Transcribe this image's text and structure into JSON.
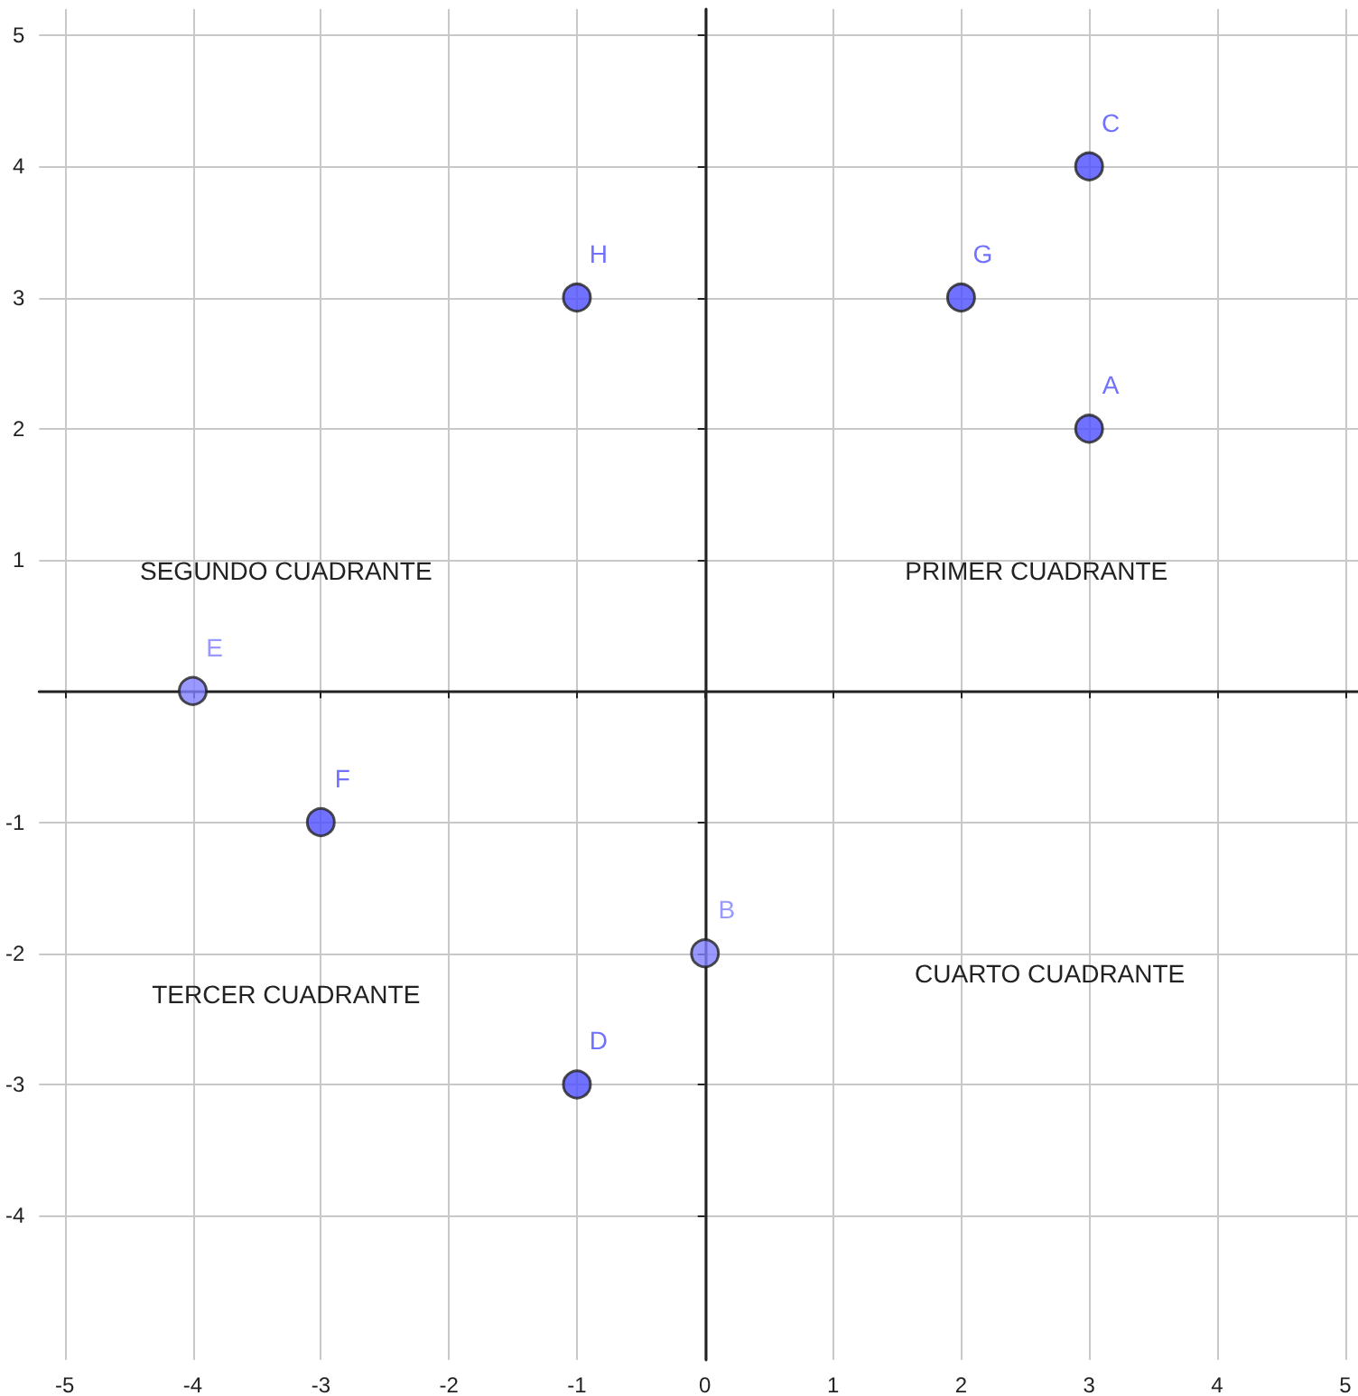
{
  "chart_data": {
    "type": "scatter",
    "marker": "circle",
    "grid": true,
    "xlim": [
      -5.2,
      5.1
    ],
    "ylim": [
      -5.1,
      5.2
    ],
    "xticks": [
      -5,
      -4,
      -3,
      -2,
      -1,
      0,
      1,
      2,
      3,
      4,
      5
    ],
    "yticks": [
      -4,
      -3,
      -2,
      -1,
      1,
      2,
      3,
      4,
      5
    ],
    "series": [
      {
        "name": "A",
        "color": "#4d4dff",
        "x": [
          3
        ],
        "values": [
          2
        ]
      },
      {
        "name": "B",
        "color": "#7f7fff",
        "x": [
          0
        ],
        "values": [
          -2
        ]
      },
      {
        "name": "C",
        "color": "#4d4dff",
        "x": [
          3
        ],
        "values": [
          4
        ]
      },
      {
        "name": "D",
        "color": "#4d4dff",
        "x": [
          -1
        ],
        "values": [
          -3
        ]
      },
      {
        "name": "E",
        "color": "#7f7fff",
        "x": [
          -4
        ],
        "values": [
          0
        ]
      },
      {
        "name": "F",
        "color": "#4d4dff",
        "x": [
          -3
        ],
        "values": [
          -1
        ]
      },
      {
        "name": "G",
        "color": "#4d4dff",
        "x": [
          2
        ],
        "values": [
          3
        ]
      },
      {
        "name": "H",
        "color": "#4d4dff",
        "x": [
          -1
        ],
        "values": [
          3
        ]
      }
    ],
    "annotations": [
      "SEGUNDO CUADRANTE",
      "PRIMER CUADRANTE",
      "TERCER CUADRANTE",
      "CUARTO CUADRANTE"
    ]
  }
}
